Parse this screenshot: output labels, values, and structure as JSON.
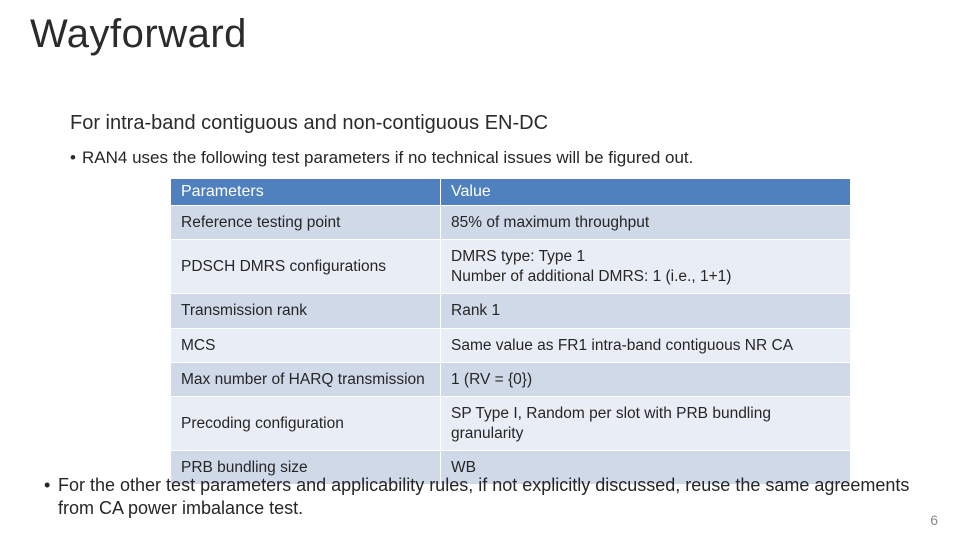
{
  "title": "Wayforward",
  "subtitle": "For intra-band contiguous and non-contiguous EN-DC",
  "bullet1": "RAN4 uses the following test parameters if no technical issues will be figured out.",
  "bullet2": "For the other test parameters and applicability rules, if not explicitly discussed, reuse the same agreements from CA power imbalance test.",
  "page_number": "6",
  "table": {
    "header_bg": "#4e81bd",
    "header_fg": "#ffffff",
    "row_bg_even": "#d0d9e8",
    "row_bg_odd": "#e9edf5",
    "columns": [
      "Parameters",
      "Value"
    ],
    "rows": [
      [
        "Reference testing point",
        "85% of maximum throughput"
      ],
      [
        "PDSCH DMRS configurations",
        "DMRS type: Type 1\nNumber of additional DMRS: 1 (i.e., 1+1)"
      ],
      [
        "Transmission rank",
        "Rank 1"
      ],
      [
        "MCS",
        "Same value as FR1 intra-band contiguous NR CA"
      ],
      [
        "Max number of HARQ transmission",
        "1 (RV = {0})"
      ],
      [
        "Precoding configuration",
        "SP Type I, Random per slot with PRB bundling granularity"
      ],
      [
        "PRB bundling size",
        "WB"
      ]
    ]
  }
}
